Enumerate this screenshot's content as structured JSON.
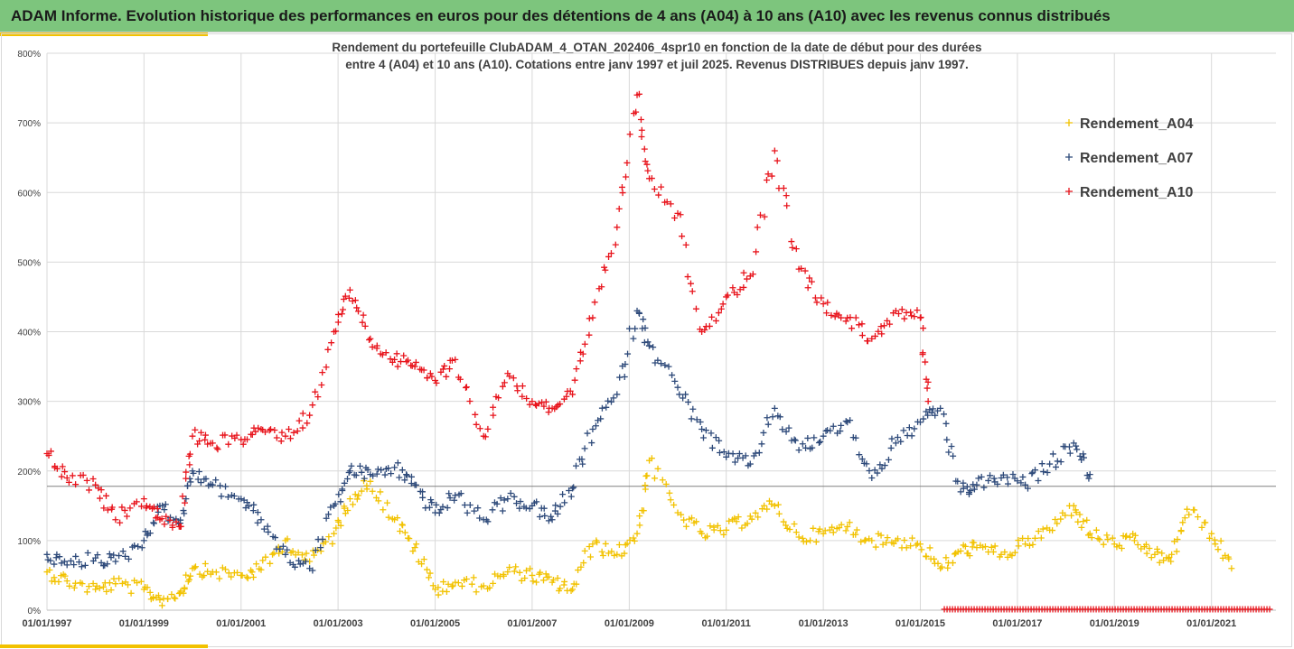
{
  "header": {
    "title": "ADAM Informe. Evolution historique des performances en euros pour des détentions de 4 ans (A04) à 10 ans (A10) avec les revenus connus distribués"
  },
  "chart_data": {
    "type": "scatter",
    "subtitle_lines": [
      "Rendement du portefeuille ClubADAM_4_OTAN_202406_4spr10  en fonction de la date de début pour des durées",
      "entre 4 (A04) et 10 ans (A10). Cotations entre janv 1997 et juil 2025. Revenus DISTRIBUES depuis janv 1997."
    ],
    "xlabel": "",
    "ylabel": "",
    "xlim": [
      "1997-01-01",
      "2022-05-01"
    ],
    "ylim": [
      0,
      800
    ],
    "y_ticks": [
      "0%",
      "100%",
      "200%",
      "300%",
      "400%",
      "500%",
      "600%",
      "700%",
      "800%"
    ],
    "x_ticks": [
      "01/01/1997",
      "01/01/1999",
      "01/01/2001",
      "01/01/2003",
      "01/01/2005",
      "01/01/2007",
      "01/01/2009",
      "01/01/2011",
      "01/01/2013",
      "01/01/2015",
      "01/01/2017",
      "01/01/2019",
      "01/01/2021"
    ],
    "grid": true,
    "legend_position": "top-right",
    "reference_line_y": 178,
    "series": [
      {
        "name": "Rendement_A04",
        "color": "#f2c200",
        "marker": "+",
        "x": [
          "1997-01-01",
          "1997-06-01",
          "1998-01-01",
          "1998-06-01",
          "1999-01-01",
          "1999-05-01",
          "1999-10-01",
          "2000-01-01",
          "2000-06-01",
          "2001-01-01",
          "2001-06-01",
          "2001-12-01",
          "2002-06-01",
          "2002-12-01",
          "2003-04-01",
          "2003-09-01",
          "2004-03-01",
          "2004-08-01",
          "2005-01-01",
          "2005-06-01",
          "2006-01-01",
          "2006-07-01",
          "2007-01-01",
          "2007-06-01",
          "2007-11-01",
          "2008-04-01",
          "2008-10-01",
          "2009-03-01",
          "2009-06-01",
          "2010-01-01",
          "2010-07-01",
          "2011-01-01",
          "2011-07-01",
          "2012-01-01",
          "2012-07-01",
          "2013-01-01",
          "2013-07-01",
          "2014-01-01",
          "2014-07-01",
          "2015-01-01",
          "2015-06-01",
          "2015-11-01",
          "2016-03-01",
          "2016-09-01",
          "2017-03-01",
          "2017-09-01",
          "2018-03-01",
          "2018-07-01",
          "2019-01-01",
          "2019-06-01",
          "2019-11-01",
          "2020-03-01",
          "2020-07-01",
          "2021-01-01",
          "2021-06-01"
        ],
        "y": [
          55,
          42,
          30,
          38,
          30,
          15,
          25,
          60,
          55,
          50,
          58,
          100,
          70,
          110,
          160,
          185,
          130,
          90,
          30,
          40,
          35,
          55,
          50,
          40,
          30,
          95,
          80,
          110,
          215,
          140,
          110,
          115,
          135,
          150,
          105,
          110,
          120,
          100,
          100,
          95,
          60,
          85,
          90,
          80,
          95,
          115,
          150,
          110,
          95,
          100,
          80,
          70,
          145,
          110,
          60
        ]
      },
      {
        "name": "Rendement_A07",
        "color": "#2e4a7a",
        "marker": "+",
        "x": [
          "1997-01-01",
          "1997-06-01",
          "1998-01-01",
          "1998-06-01",
          "1999-01-01",
          "1999-05-01",
          "1999-10-01",
          "2000-01-01",
          "2000-06-01",
          "2001-01-01",
          "2001-06-01",
          "2001-12-01",
          "2002-06-01",
          "2002-12-01",
          "2003-04-01",
          "2003-09-01",
          "2004-03-01",
          "2004-08-01",
          "2005-01-01",
          "2005-06-01",
          "2006-01-01",
          "2006-07-01",
          "2007-01-01",
          "2007-06-01",
          "2007-11-01",
          "2008-04-01",
          "2008-10-01",
          "2009-03-01",
          "2009-06-01",
          "2010-01-01",
          "2010-07-01",
          "2011-01-01",
          "2011-07-01",
          "2012-01-01",
          "2012-07-01",
          "2013-01-01",
          "2013-07-01",
          "2014-01-01",
          "2014-07-01",
          "2015-01-01",
          "2015-06-01",
          "2015-11-01",
          "2016-03-01",
          "2016-09-01",
          "2017-03-01",
          "2017-09-01",
          "2018-03-01",
          "2018-07-01"
        ],
        "y": [
          80,
          65,
          75,
          70,
          100,
          150,
          125,
          200,
          180,
          160,
          130,
          80,
          60,
          150,
          200,
          195,
          205,
          180,
          140,
          165,
          130,
          160,
          150,
          130,
          175,
          260,
          310,
          430,
          380,
          320,
          260,
          220,
          210,
          290,
          230,
          250,
          270,
          190,
          240,
          270,
          290,
          170,
          180,
          190,
          180,
          210,
          240,
          195
        ]
      },
      {
        "name": "Rendement_A10",
        "color": "#e8141c",
        "marker": "+",
        "x": [
          "1997-01-01",
          "1997-06-01",
          "1998-01-01",
          "1998-06-01",
          "1999-01-01",
          "1999-05-01",
          "1999-10-01",
          "2000-01-01",
          "2000-06-01",
          "2001-01-01",
          "2001-06-01",
          "2001-12-01",
          "2002-06-01",
          "2002-12-01",
          "2003-04-01",
          "2003-09-01",
          "2004-03-01",
          "2004-08-01",
          "2005-01-01",
          "2005-06-01",
          "2006-01-01",
          "2006-07-01",
          "2007-01-01",
          "2007-06-01",
          "2007-11-01",
          "2008-04-01",
          "2008-10-01",
          "2009-03-01",
          "2009-06-01",
          "2010-01-01",
          "2010-07-01",
          "2011-01-01",
          "2011-07-01",
          "2012-01-01",
          "2012-07-01",
          "2013-01-01",
          "2013-07-01",
          "2014-01-01",
          "2014-07-01",
          "2015-01-01",
          "2015-03-01"
        ],
        "y": [
          225,
          190,
          180,
          130,
          160,
          130,
          120,
          250,
          240,
          245,
          260,
          250,
          280,
          400,
          460,
          390,
          360,
          350,
          330,
          360,
          250,
          340,
          300,
          290,
          310,
          420,
          550,
          740,
          620,
          570,
          400,
          450,
          480,
          660,
          490,
          440,
          420,
          390,
          430,
          420,
          300
        ]
      }
    ],
    "zero_band": {
      "color": "#e8141c",
      "x_start": "2015-07-01",
      "x_end": "2022-04-01",
      "y": 0
    }
  }
}
